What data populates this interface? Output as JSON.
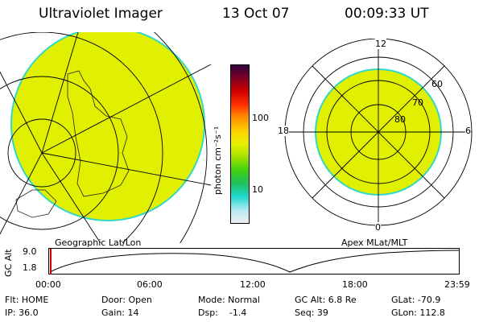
{
  "header": {
    "instrument": "Ultraviolet Imager",
    "date": "13 Oct 07",
    "time": "00:09:33 UT"
  },
  "left_panel": {
    "label": "Geographic Lat/Lon"
  },
  "right_panel": {
    "label": "Apex  MLat/MLT",
    "mlt_labels": [
      "12",
      "18",
      "6",
      "0"
    ],
    "lat_labels": [
      "60",
      "70",
      "80"
    ]
  },
  "colorbar": {
    "unit_label": "photon cm⁻²s⁻¹",
    "ticks": [
      "100",
      "10"
    ],
    "colors": [
      "#f0f0f0",
      "#b0e8f0",
      "#20d8d0",
      "#20c060",
      "#40d010",
      "#a0e000",
      "#e8f000",
      "#ffd000",
      "#ff9000",
      "#ff3000",
      "#d00000",
      "#800020",
      "#300040"
    ]
  },
  "timeline": {
    "ylabel": "GC Alt",
    "yticks": [
      "9.0",
      "1.8"
    ],
    "xticks": [
      "00:00",
      "06:00",
      "12:00",
      "18:00",
      "23:59"
    ]
  },
  "status": {
    "flt": "Flt: HOME",
    "ip": "IP: 36.0",
    "door": "Door: Open",
    "gain": "Gain: 14",
    "mode": "Mode: Normal",
    "dsp": "Dsp:    -1.4",
    "gcalt": "GC Alt: 6.8 Re",
    "seq": "Seq: 39",
    "glat": "GLat: -70.9",
    "glon": "GLon: 112.8"
  },
  "colors": {
    "aurora": "#e0f000",
    "edge": "#30d8c8",
    "timeline_marker": "#d00000"
  }
}
